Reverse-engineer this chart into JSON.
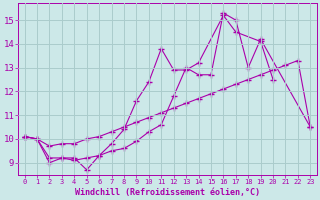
{
  "title": "",
  "xlabel": "Windchill (Refroidissement éolien,°C)",
  "ylabel": "",
  "xlim": [
    -0.5,
    23.5
  ],
  "ylim": [
    8.5,
    15.7
  ],
  "xticks": [
    0,
    1,
    2,
    3,
    4,
    5,
    6,
    7,
    8,
    9,
    10,
    11,
    12,
    13,
    14,
    15,
    16,
    17,
    18,
    19,
    20,
    21,
    22,
    23
  ],
  "yticks": [
    9,
    10,
    11,
    12,
    13,
    14,
    15
  ],
  "bg_color": "#cce8e8",
  "line_color": "#aa00aa",
  "grid_color": "#aacccc",
  "series_x": [
    [
      0,
      1,
      2,
      3,
      4,
      5,
      6,
      7,
      8,
      9,
      10,
      11,
      12,
      13,
      14,
      15,
      16,
      17,
      18,
      19,
      23
    ],
    [
      0,
      1,
      2,
      3,
      4,
      5,
      6,
      7,
      8,
      9,
      10,
      11,
      12,
      13,
      14,
      16,
      17,
      19,
      20
    ],
    [
      0,
      1,
      2,
      3,
      4,
      5,
      6,
      7,
      8,
      9,
      10,
      11,
      12,
      13,
      14,
      15,
      16,
      17,
      18,
      19,
      20,
      21,
      22,
      23
    ]
  ],
  "series_y": [
    [
      10.1,
      10.0,
      9.0,
      9.2,
      9.2,
      8.7,
      9.3,
      9.5,
      9.6,
      9.9,
      10.3,
      10.6,
      11.8,
      13.0,
      12.7,
      12.7,
      15.3,
      15.0,
      13.0,
      14.2,
      10.5
    ],
    [
      10.1,
      10.0,
      9.2,
      9.2,
      9.1,
      9.2,
      9.3,
      9.8,
      10.4,
      11.6,
      12.4,
      13.8,
      12.9,
      12.9,
      13.2,
      15.2,
      14.5,
      14.1,
      12.5
    ],
    [
      10.1,
      10.0,
      9.7,
      9.8,
      9.8,
      10.0,
      10.1,
      10.3,
      10.5,
      10.7,
      10.9,
      11.1,
      11.3,
      11.5,
      11.7,
      11.9,
      12.1,
      12.3,
      12.5,
      12.7,
      12.9,
      13.1,
      13.3,
      10.5
    ]
  ]
}
